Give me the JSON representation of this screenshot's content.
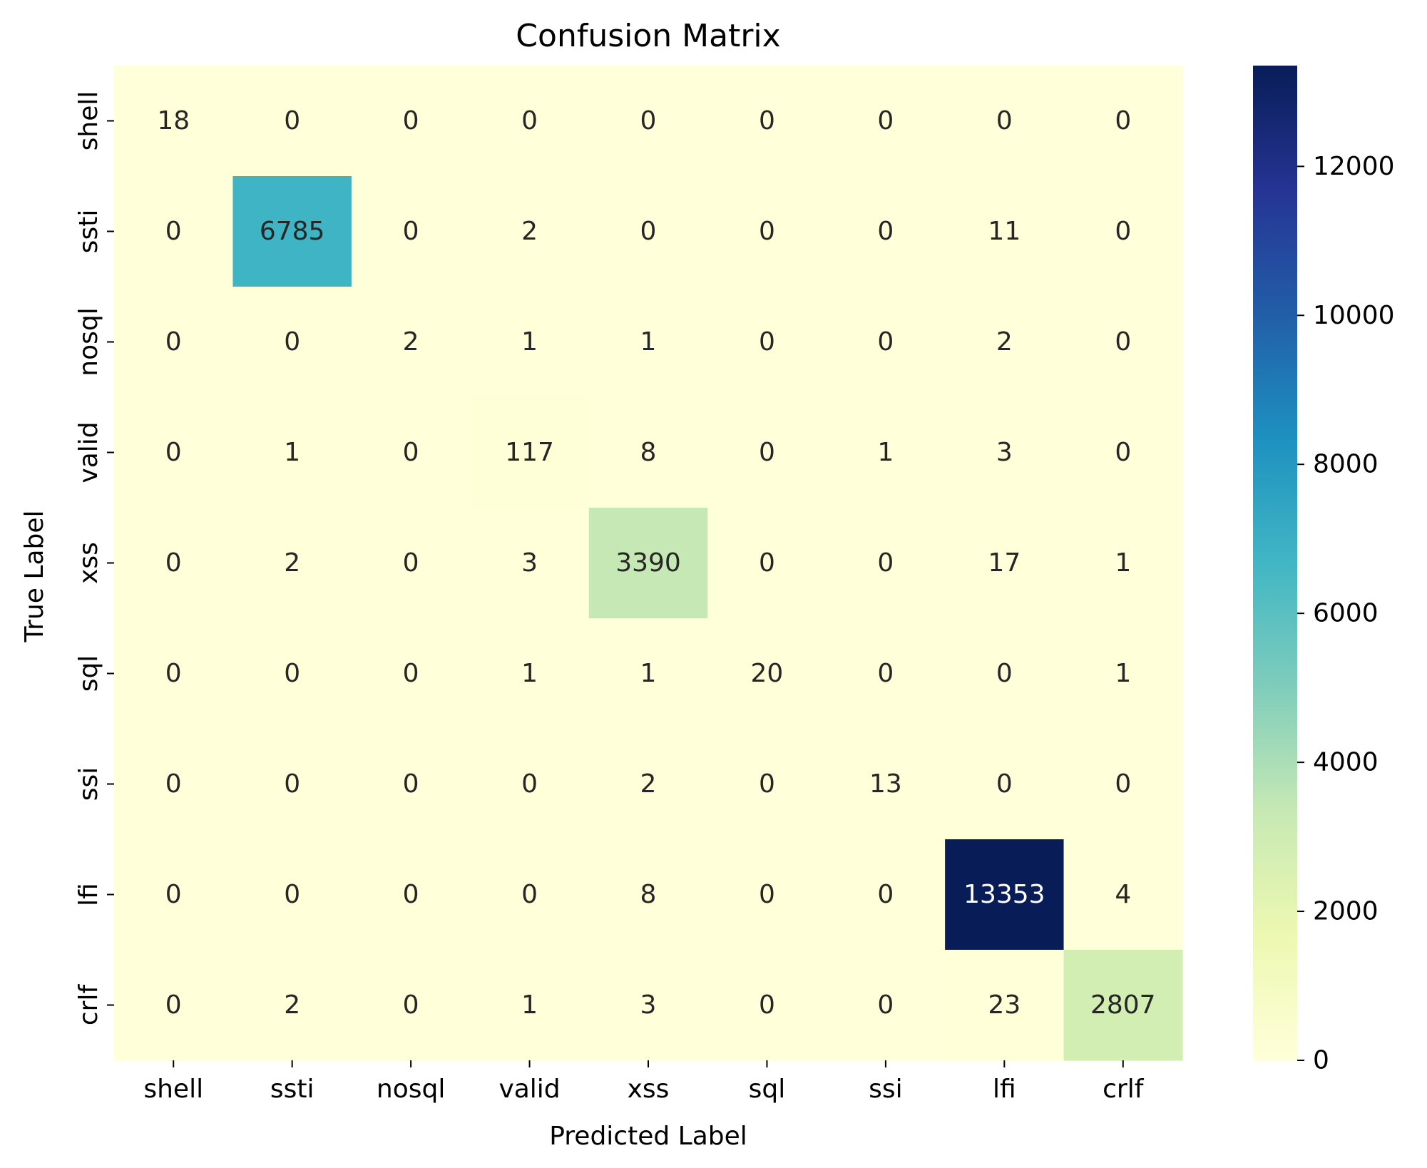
{
  "chart_data": {
    "type": "heatmap",
    "title": "Confusion Matrix",
    "xlabel": "Predicted Label",
    "ylabel": "True Label",
    "x_categories": [
      "shell",
      "ssti",
      "nosql",
      "valid",
      "xss",
      "sql",
      "ssi",
      "lfi",
      "crlf"
    ],
    "y_categories": [
      "shell",
      "ssti",
      "nosql",
      "valid",
      "xss",
      "sql",
      "ssi",
      "lfi",
      "crlf"
    ],
    "matrix": [
      [
        18,
        0,
        0,
        0,
        0,
        0,
        0,
        0,
        0
      ],
      [
        0,
        6785,
        0,
        2,
        0,
        0,
        0,
        11,
        0
      ],
      [
        0,
        0,
        2,
        1,
        1,
        0,
        0,
        2,
        0
      ],
      [
        0,
        1,
        0,
        117,
        8,
        0,
        1,
        3,
        0
      ],
      [
        0,
        2,
        0,
        3,
        3390,
        0,
        0,
        17,
        1
      ],
      [
        0,
        0,
        0,
        1,
        1,
        20,
        0,
        0,
        1
      ],
      [
        0,
        0,
        0,
        0,
        2,
        0,
        13,
        0,
        0
      ],
      [
        0,
        0,
        0,
        0,
        8,
        0,
        0,
        13353,
        4
      ],
      [
        0,
        2,
        0,
        1,
        3,
        0,
        0,
        23,
        2807
      ]
    ],
    "colorbar": {
      "colormap": "YlGnBu",
      "range": [
        0,
        13353
      ],
      "ticks": [
        0,
        2000,
        4000,
        6000,
        8000,
        10000,
        12000
      ]
    }
  }
}
